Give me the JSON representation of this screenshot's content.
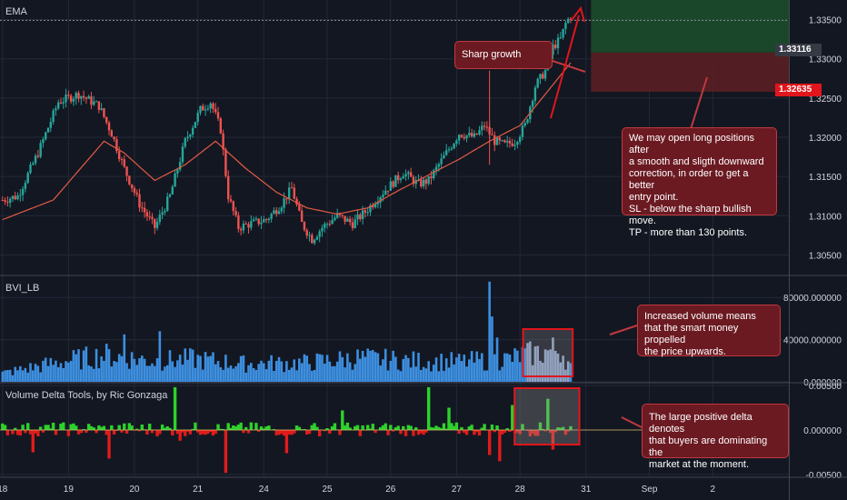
{
  "chart_data": [
    {
      "type": "candlestick",
      "title": "EMA",
      "ylim": [
        1.3025,
        1.3375
      ],
      "y_ticks": [
        "1.30500",
        "1.31000",
        "1.31500",
        "1.32000",
        "1.32500",
        "1.33000",
        "1.33500"
      ],
      "y_tick_values": [
        1.305,
        1.31,
        1.315,
        1.32,
        1.325,
        1.33,
        1.335
      ],
      "close_path": [
        [
          0,
          1.312
        ],
        [
          6,
          1.3125
        ],
        [
          14,
          1.318
        ],
        [
          22,
          1.3245
        ],
        [
          30,
          1.3255
        ],
        [
          38,
          1.324
        ],
        [
          43,
          1.3205
        ],
        [
          48,
          1.316
        ],
        [
          54,
          1.3115
        ],
        [
          60,
          1.3085
        ],
        [
          66,
          1.3125
        ],
        [
          72,
          1.3195
        ],
        [
          78,
          1.3235
        ],
        [
          82,
          1.3245
        ],
        [
          86,
          1.321
        ],
        [
          89,
          1.3125
        ],
        [
          93,
          1.3085
        ],
        [
          98,
          1.309
        ],
        [
          104,
          1.3095
        ],
        [
          110,
          1.3115
        ],
        [
          114,
          1.3135
        ],
        [
          118,
          1.309
        ],
        [
          122,
          1.307
        ],
        [
          126,
          1.3085
        ],
        [
          132,
          1.31
        ],
        [
          138,
          1.309
        ],
        [
          143,
          1.3105
        ],
        [
          150,
          1.313
        ],
        [
          158,
          1.3155
        ],
        [
          164,
          1.314
        ],
        [
          168,
          1.3145
        ],
        [
          174,
          1.3175
        ],
        [
          180,
          1.3205
        ],
        [
          186,
          1.32
        ],
        [
          190,
          1.3215
        ],
        [
          194,
          1.3195
        ],
        [
          198,
          1.319
        ],
        [
          202,
          1.3195
        ],
        [
          206,
          1.3215
        ],
        [
          210,
          1.3265
        ],
        [
          214,
          1.3285
        ],
        [
          217,
          1.3315
        ],
        [
          220,
          1.3325
        ],
        [
          222,
          1.3345
        ],
        [
          224,
          1.3355
        ]
      ],
      "ema_path": [
        [
          0,
          1.3095
        ],
        [
          20,
          1.312
        ],
        [
          40,
          1.3195
        ],
        [
          48,
          1.318
        ],
        [
          60,
          1.3145
        ],
        [
          72,
          1.3165
        ],
        [
          84,
          1.3195
        ],
        [
          96,
          1.316
        ],
        [
          108,
          1.313
        ],
        [
          120,
          1.311
        ],
        [
          132,
          1.3102
        ],
        [
          144,
          1.311
        ],
        [
          156,
          1.3132
        ],
        [
          168,
          1.3152
        ],
        [
          180,
          1.3172
        ],
        [
          192,
          1.3195
        ],
        [
          204,
          1.3215
        ],
        [
          214,
          1.3255
        ],
        [
          224,
          1.3295
        ]
      ],
      "annotation_levels": {
        "target_top": 1.3375,
        "entry": 1.3308,
        "stop": 1.3258
      },
      "annotations": [
        {
          "text": "Sharp growth"
        },
        {
          "text": "We may open long positions after\na smooth and sligth downward\ncorrection, in order to get a better\nentry point.\nSL - below the sharp bullish move.\nTP - more than 130 points."
        }
      ],
      "price_tags": [
        {
          "label": "1.33116",
          "color": "#363a45"
        },
        {
          "label": "1.32635",
          "color": "#e0161c"
        }
      ]
    },
    {
      "type": "bar",
      "title": "BVI_LB",
      "ylim": [
        0,
        100000
      ],
      "y_ticks": [
        "0.000000",
        "40000.000000",
        "80000.000000"
      ],
      "y_tick_values": [
        0,
        40000,
        80000
      ],
      "series_color": "#3d8fe0",
      "highlight_color": "#8ea3c8",
      "highlight_range": [
        207,
        223
      ],
      "spike_points": [
        [
          0,
          9000
        ],
        [
          25,
          22000
        ],
        [
          40,
          28000
        ],
        [
          60,
          22000
        ],
        [
          75,
          24000
        ],
        [
          95,
          19000
        ],
        [
          120,
          20000
        ],
        [
          140,
          25000
        ],
        [
          160,
          22000
        ],
        [
          180,
          21000
        ],
        [
          200,
          24000
        ],
        [
          205,
          28000
        ],
        [
          210,
          30000
        ],
        [
          215,
          32000
        ],
        [
          220,
          35000
        ],
        [
          224,
          15000
        ]
      ],
      "notable_values": [
        [
          48,
          45000
        ],
        [
          62,
          48000
        ],
        [
          192,
          95000
        ],
        [
          193,
          62000
        ],
        [
          195,
          42000
        ],
        [
          217,
          42000
        ]
      ],
      "annotation": "Increased volume means\nthat the smart money propelled\nthe price upwards."
    },
    {
      "type": "area",
      "title": "Volume Delta Tools, by Ric Gonzaga",
      "ylim": [
        -0.0052,
        0.0052
      ],
      "y_ticks": [
        "0.00500",
        "0.000000",
        "-0.00500"
      ],
      "y_tick_values": [
        0.005,
        0,
        -0.005
      ],
      "positive_color": "#2bd22b",
      "negative_color": "#e01b1b",
      "highlight_range": [
        204,
        226
      ],
      "notable_values": [
        [
          12,
          -0.0025
        ],
        [
          42,
          -0.0032
        ],
        [
          68,
          0.0048
        ],
        [
          70,
          -0.0012
        ],
        [
          88,
          -0.0048
        ],
        [
          112,
          -0.0026
        ],
        [
          134,
          0.0022
        ],
        [
          168,
          0.0048
        ],
        [
          176,
          0.0025
        ],
        [
          192,
          -0.0028
        ],
        [
          196,
          -0.0035
        ],
        [
          201,
          0.0028
        ],
        [
          215,
          0.0035
        ],
        [
          217,
          -0.0022
        ]
      ],
      "annotation": "The large positive delta denotes\nthat buyers are dominating the\nmarket at the moment."
    }
  ],
  "x_axis": {
    "ticks": [
      "18",
      "19",
      "20",
      "21",
      "24",
      "25",
      "26",
      "27",
      "28",
      "31",
      "Sep",
      "2"
    ],
    "tick_positions": [
      0,
      26,
      52,
      77,
      103,
      128,
      153,
      179,
      204,
      230,
      255,
      280
    ],
    "xlim": [
      -1,
      310
    ]
  }
}
